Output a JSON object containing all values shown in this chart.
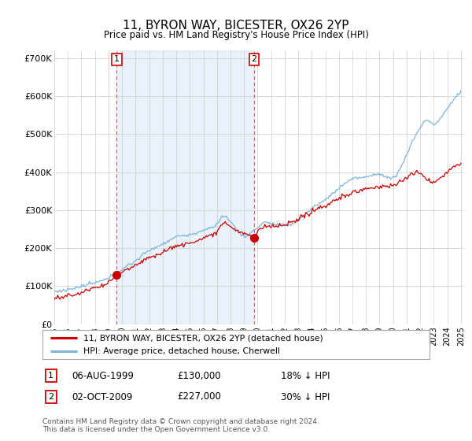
{
  "title": "11, BYRON WAY, BICESTER, OX26 2YP",
  "subtitle": "Price paid vs. HM Land Registry's House Price Index (HPI)",
  "ylabel_ticks": [
    "£0",
    "£100K",
    "£200K",
    "£300K",
    "£400K",
    "£500K",
    "£600K",
    "£700K"
  ],
  "ytick_values": [
    0,
    100000,
    200000,
    300000,
    400000,
    500000,
    600000,
    700000
  ],
  "ylim": [
    0,
    720000
  ],
  "hpi_color": "#7ab4d8",
  "hpi_fill_color": "#ddeeff",
  "price_color": "#cc0000",
  "marker_color": "#cc0000",
  "sale1_x": 1999.6,
  "sale1_price": 130000,
  "sale2_x": 2009.75,
  "sale2_price": 227000,
  "legend1_label": "11, BYRON WAY, BICESTER, OX26 2YP (detached house)",
  "legend2_label": "HPI: Average price, detached house, Cherwell",
  "note1_date": "06-AUG-1999",
  "note1_price": "£130,000",
  "note1_pct": "18% ↓ HPI",
  "note2_date": "02-OCT-2009",
  "note2_price": "£227,000",
  "note2_pct": "30% ↓ HPI",
  "footer": "Contains HM Land Registry data © Crown copyright and database right 2024.\nThis data is licensed under the Open Government Licence v3.0.",
  "bg_color": "#ffffff",
  "plot_bg_color": "#ffffff"
}
